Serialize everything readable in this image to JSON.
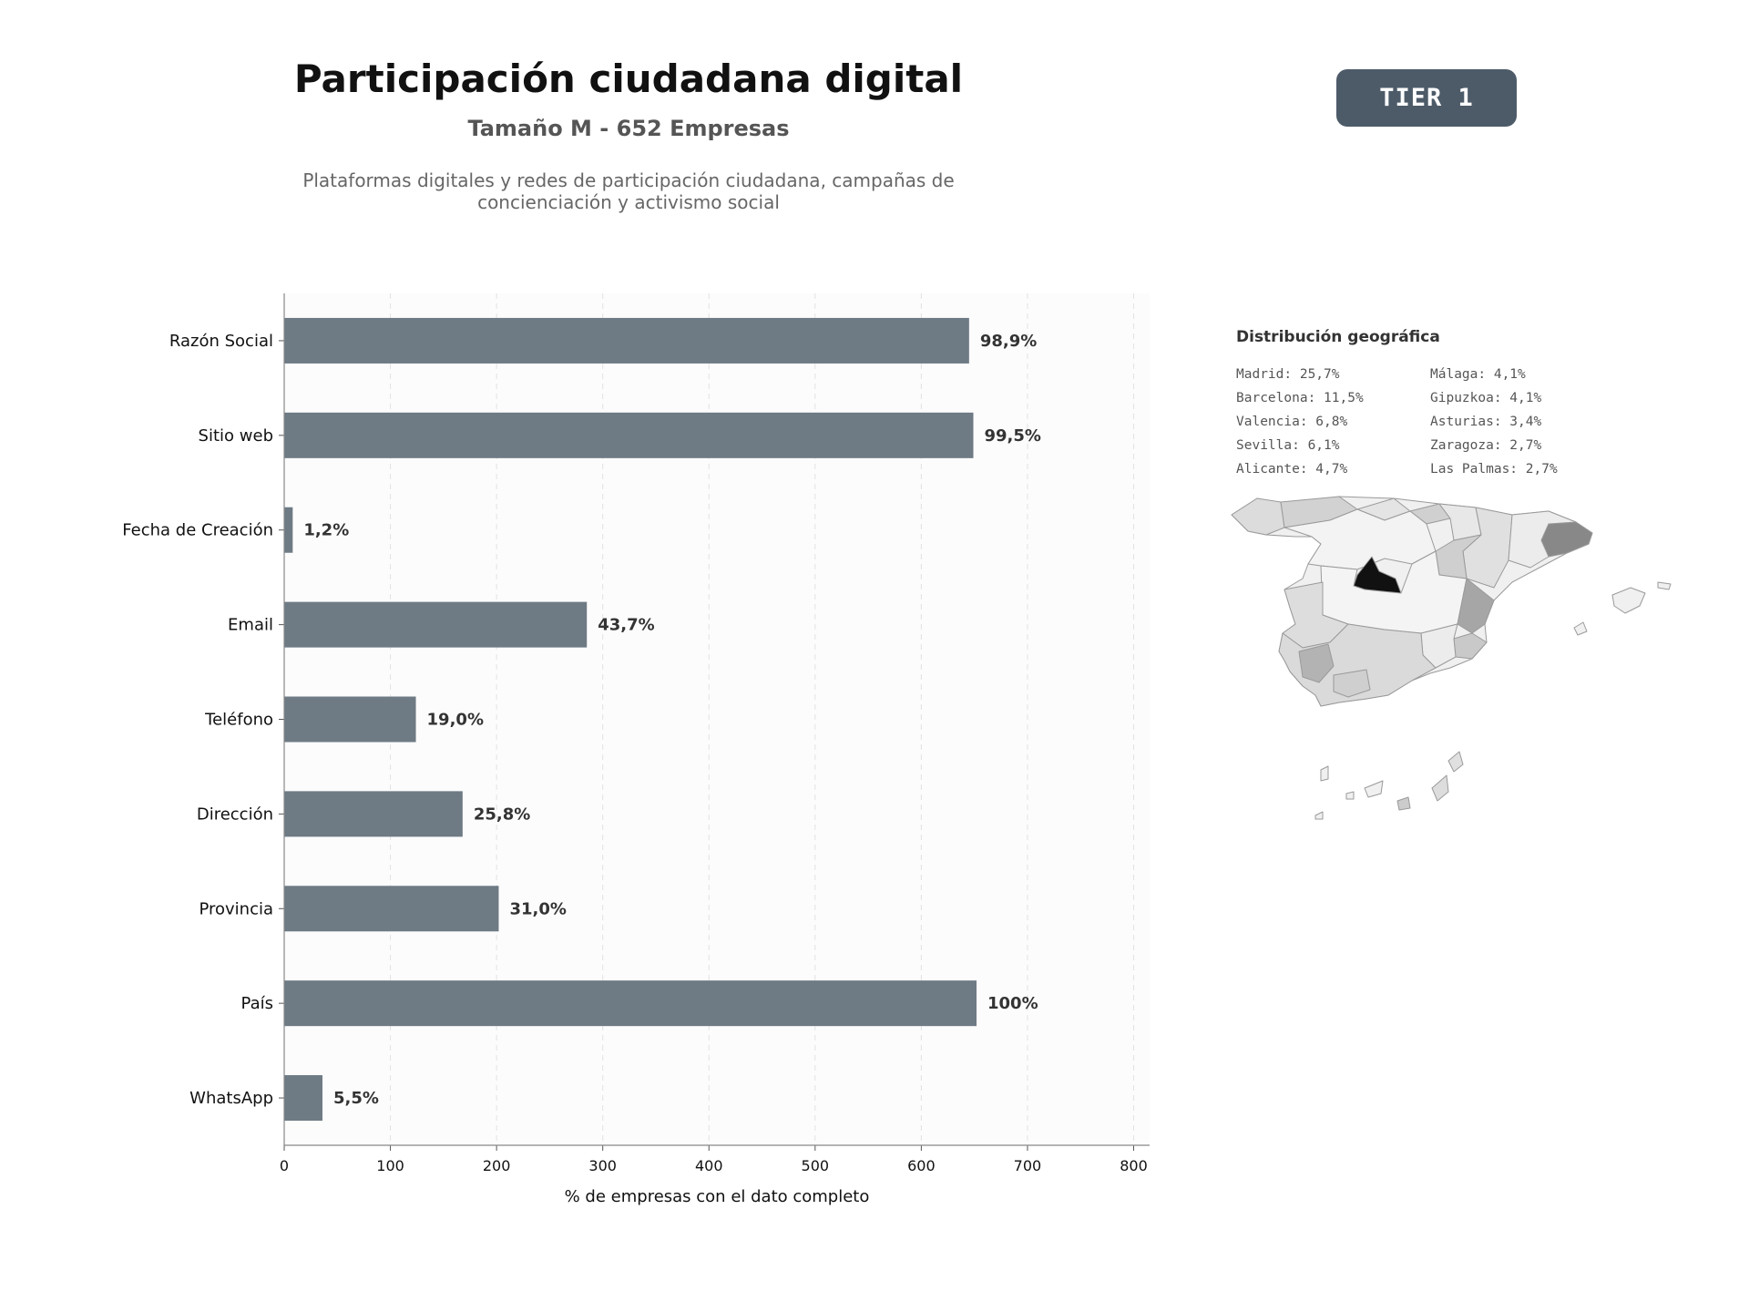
{
  "header": {
    "title": "Participación ciudadana digital",
    "subtitle": "Tamaño M - 652 Empresas",
    "description_line1": "Plataformas digitales y redes de participación ciudadana, campañas de",
    "description_line2": "concienciación y activismo social",
    "tier": "TIER 1"
  },
  "chart_data": {
    "type": "bar",
    "orientation": "horizontal",
    "categories": [
      "Razón Social",
      "Sitio web",
      "Fecha de Creación",
      "Email",
      "Teléfono",
      "Dirección",
      "Provincia",
      "País",
      "WhatsApp"
    ],
    "values": [
      645,
      649,
      8,
      285,
      124,
      168,
      202,
      652,
      36
    ],
    "value_labels": [
      "98,9%",
      "99,5%",
      "1,2%",
      "43,7%",
      "19,0%",
      "25,8%",
      "31,0%",
      "100%",
      "5,5%"
    ],
    "xlabel": "% de empresas con el dato completo",
    "xticks": [
      "0",
      "100",
      "200",
      "300",
      "400",
      "500",
      "600",
      "700",
      "800"
    ],
    "xlim": [
      0,
      815
    ],
    "grid": "vertical dashed",
    "bar_color": "#6e7a84"
  },
  "geo": {
    "title": "Distribución geográfica",
    "col1": [
      "Madrid: 25,7%",
      "Barcelona: 11,5%",
      "Valencia: 6,8%",
      "Sevilla: 6,1%",
      "Alicante: 4,7%"
    ],
    "col2": [
      "Málaga: 4,1%",
      "Gipuzkoa: 4,1%",
      "Asturias: 3,4%",
      "Zaragoza: 2,7%",
      "Las Palmas: 2,7%"
    ],
    "highlight_colors": {
      "Madrid": "#111111",
      "Barcelona": "#888888",
      "Valencia": "#a6a6a6",
      "Sevilla": "#b3b3b3"
    }
  }
}
